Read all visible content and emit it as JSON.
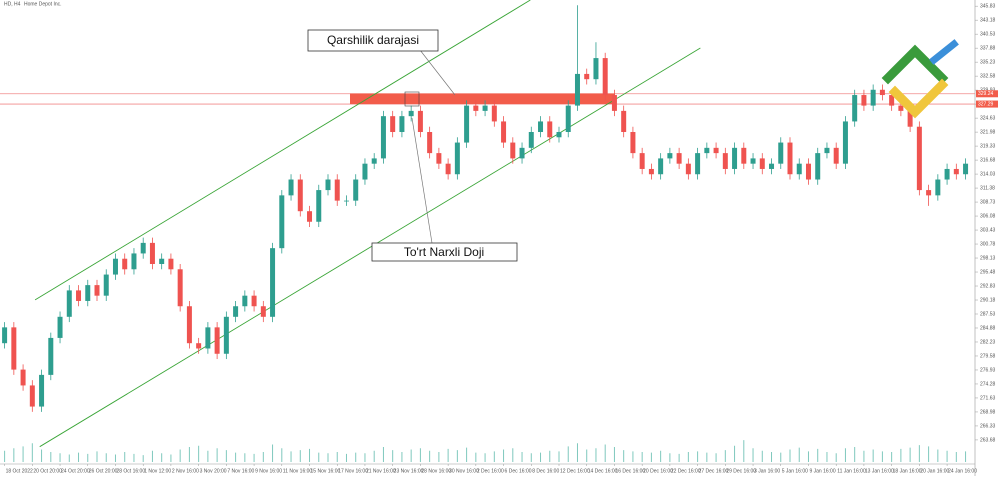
{
  "chart_data": {
    "type": "candlestick",
    "title": "HD, H4",
    "subtitle": "Home Depot Inc.",
    "categories": [
      "18 Oct 2022",
      null,
      null,
      "20 Oct 20:00",
      null,
      null,
      "24 Oct 20:00",
      null,
      null,
      "26 Oct 20:00",
      null,
      null,
      "28 Oct 16:00",
      null,
      null,
      "1 Nov 12:00",
      null,
      null,
      "2 Nov 16:00",
      null,
      null,
      "3 Nov 20:00",
      null,
      null,
      "7 Nov 16:00",
      null,
      null,
      "9 Nov 16:00",
      null,
      null,
      "11 Nov 16:00",
      null,
      null,
      "15 Nov 16:00",
      null,
      null,
      "17 Nov 16:00",
      null,
      null,
      "21 Nov 16:00",
      null,
      null,
      "23 Nov 16:00",
      null,
      null,
      "28 Nov 16:00",
      null,
      null,
      "30 Nov 16:00",
      null,
      null,
      "2 Dec 16:00",
      null,
      null,
      "6 Dec 16:00",
      null,
      null,
      "8 Dec 16:00",
      null,
      null,
      "12 Dec 16:00",
      null,
      null,
      "14 Dec 16:00",
      null,
      null,
      "16 Dec 16:00",
      null,
      null,
      "20 Dec 16:00",
      null,
      null,
      "22 Dec 16:00",
      null,
      null,
      "27 Dec 16:00",
      null,
      null,
      "29 Dec 16:00",
      null,
      null,
      "3 Jan 16:00",
      null,
      null,
      "5 Jan 16:00",
      null,
      null,
      "9 Jan 16:00",
      null,
      null,
      "11 Jan 16:00",
      null,
      null,
      "13 Jan 16:00",
      null,
      null,
      "18 Jan 16:00",
      null,
      null,
      "20 Jan 16:00",
      null,
      null,
      "24 Jan 16:00",
      null,
      null
    ],
    "open": [
      282,
      285,
      277,
      274,
      270,
      276,
      283,
      287,
      292,
      290,
      293,
      291,
      295,
      298,
      296,
      299,
      301,
      297,
      298,
      296,
      289,
      282,
      281,
      285,
      280,
      287,
      289,
      291,
      289,
      287,
      300,
      310,
      313,
      307,
      305,
      311,
      313,
      309,
      309,
      313,
      316,
      317,
      325,
      322,
      325,
      326,
      322,
      318,
      316,
      314,
      320,
      327,
      326,
      327,
      324,
      320,
      317,
      319,
      322,
      324,
      321,
      322,
      327,
      333,
      332,
      336,
      329,
      326,
      322,
      318,
      315,
      314,
      317,
      318,
      316,
      314,
      318,
      319,
      318,
      315,
      319,
      316,
      317,
      315,
      316,
      320,
      314,
      316,
      313,
      318,
      319,
      316,
      324,
      329,
      327,
      330,
      329,
      327,
      326,
      323,
      311,
      310,
      313,
      315,
      314
    ],
    "high": [
      286,
      286,
      278,
      275,
      277,
      284,
      288,
      293,
      293,
      294,
      294,
      296,
      299,
      299,
      300,
      302,
      302,
      299,
      299,
      297,
      290,
      283,
      286,
      286,
      288,
      290,
      292,
      292,
      290,
      301,
      311,
      314,
      314,
      308,
      312,
      314,
      314,
      310,
      314,
      317,
      318,
      326,
      326,
      326,
      327,
      327,
      323,
      319,
      317,
      321,
      328,
      328,
      328,
      328,
      325,
      321,
      320,
      323,
      325,
      325,
      323,
      328,
      346,
      334,
      339,
      337,
      330,
      327,
      323,
      319,
      316,
      318,
      319,
      319,
      317,
      319,
      320,
      320,
      319,
      320,
      320,
      318,
      318,
      317,
      321,
      321,
      317,
      317,
      319,
      320,
      320,
      325,
      330,
      330,
      331,
      331,
      330,
      328,
      327,
      324,
      312,
      314,
      316,
      316,
      317
    ],
    "low": [
      281,
      276,
      273,
      269,
      269,
      275,
      282,
      286,
      289,
      289,
      290,
      290,
      294,
      295,
      295,
      298,
      296,
      296,
      295,
      288,
      281,
      280,
      280,
      279,
      279,
      286,
      288,
      288,
      286,
      286,
      299,
      309,
      306,
      304,
      304,
      310,
      308,
      308,
      308,
      312,
      315,
      316,
      321,
      321,
      324,
      321,
      317,
      315,
      313,
      313,
      319,
      325,
      325,
      323,
      319,
      316,
      316,
      318,
      321,
      320,
      320,
      321,
      326,
      331,
      331,
      328,
      325,
      321,
      317,
      314,
      313,
      313,
      316,
      315,
      313,
      313,
      317,
      317,
      314,
      314,
      315,
      315,
      314,
      314,
      315,
      313,
      313,
      312,
      312,
      317,
      315,
      315,
      323,
      326,
      326,
      328,
      326,
      325,
      322,
      310,
      308,
      309,
      312,
      313,
      313
    ],
    "close": [
      285,
      277,
      274,
      270,
      276,
      283,
      287,
      292,
      290,
      293,
      291,
      295,
      298,
      296,
      299,
      301,
      297,
      298,
      296,
      289,
      282,
      281,
      285,
      280,
      287,
      289,
      291,
      289,
      287,
      300,
      310,
      313,
      307,
      305,
      311,
      313,
      309,
      309,
      313,
      316,
      317,
      325,
      322,
      325,
      326,
      322,
      318,
      316,
      314,
      320,
      327,
      326,
      327,
      324,
      320,
      317,
      319,
      322,
      324,
      321,
      322,
      327,
      333,
      332,
      336,
      329,
      326,
      322,
      318,
      315,
      314,
      317,
      318,
      316,
      314,
      318,
      319,
      318,
      315,
      319,
      316,
      317,
      315,
      316,
      320,
      314,
      316,
      313,
      318,
      319,
      316,
      324,
      329,
      327,
      330,
      329,
      327,
      326,
      323,
      311,
      310,
      313,
      315,
      314,
      316
    ],
    "volume": [
      18,
      22,
      25,
      30,
      20,
      16,
      14,
      12,
      15,
      13,
      17,
      14,
      12,
      16,
      13,
      11,
      18,
      14,
      12,
      20,
      24,
      26,
      18,
      22,
      19,
      15,
      14,
      13,
      16,
      28,
      22,
      17,
      19,
      21,
      15,
      14,
      16,
      13,
      15,
      14,
      18,
      24,
      19,
      16,
      20,
      22,
      18,
      16,
      21,
      19,
      23,
      15,
      14,
      17,
      20,
      22,
      16,
      14,
      15,
      18,
      17,
      25,
      30,
      20,
      22,
      28,
      24,
      19,
      17,
      16,
      15,
      18,
      14,
      13,
      16,
      17,
      15,
      14,
      19,
      26,
      35,
      22,
      18,
      16,
      15,
      20,
      23,
      17,
      21,
      16,
      14,
      22,
      24,
      18,
      20,
      17,
      16,
      21,
      23,
      27,
      25,
      20,
      18,
      16,
      17
    ],
    "up_color": "#2e9e8f",
    "down_color": "#ef5350",
    "volume_color": "#7fc8bd",
    "ylim": [
      259.5,
      347
    ],
    "vlim": [
      0,
      80
    ],
    "yticks": [
      345.83,
      343.18,
      340.53,
      337.88,
      335.23,
      332.58,
      329.93,
      327.28,
      324.63,
      321.98,
      319.33,
      316.68,
      314.03,
      311.38,
      308.73,
      306.08,
      303.43,
      300.78,
      298.13,
      295.48,
      292.83,
      290.18,
      287.53,
      284.88,
      282.23,
      279.58,
      276.93,
      274.28,
      271.63,
      268.98,
      266.33,
      263.68
    ],
    "hlines": [
      329.24,
      327.29
    ],
    "hline_color": "#f08a8a",
    "resistance_zone": [
      327.3,
      329.3
    ],
    "zone_color": "#f25c4a",
    "trendlines": [
      {
        "x": [
          3.3,
          56.9
        ],
        "y": [
          290.2,
          347
        ]
      },
      {
        "x": [
          3.8,
          75.3
        ],
        "y": [
          262.4,
          337.9
        ]
      }
    ],
    "trend_color": "#3aa537",
    "annotations": [
      "Qarshilik darajasi",
      "To'rt Narxli Doji"
    ]
  }
}
